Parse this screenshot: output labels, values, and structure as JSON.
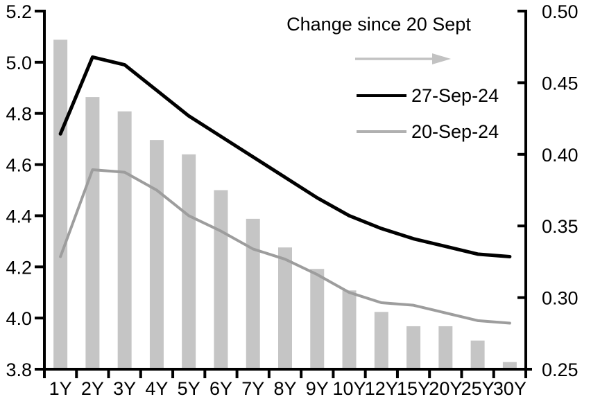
{
  "chart_data": {
    "type": "combo_bar_line",
    "title": "",
    "categories": [
      "1Y",
      "2Y",
      "3Y",
      "4Y",
      "5Y",
      "6Y",
      "7Y",
      "8Y",
      "9Y",
      "10Y",
      "12Y",
      "15Y",
      "20Y",
      "25Y",
      "30Y"
    ],
    "series": [
      {
        "name": "Change since 20 Sept",
        "type": "bar",
        "axis": "right",
        "color": "#c5c5c5",
        "values": [
          0.48,
          0.44,
          0.43,
          0.41,
          0.4,
          0.375,
          0.355,
          0.335,
          0.32,
          0.305,
          0.29,
          0.28,
          0.28,
          0.27,
          0.255
        ]
      },
      {
        "name": "27-Sep-24",
        "type": "line",
        "axis": "left",
        "color": "#000000",
        "values": [
          4.72,
          5.02,
          4.99,
          4.89,
          4.79,
          4.71,
          4.63,
          4.55,
          4.47,
          4.4,
          4.35,
          4.31,
          4.28,
          4.25,
          4.24
        ]
      },
      {
        "name": "20-Sep-24",
        "type": "line",
        "axis": "left",
        "color": "#9d9d9d",
        "values": [
          4.24,
          4.58,
          4.57,
          4.5,
          4.4,
          4.34,
          4.27,
          4.23,
          4.17,
          4.1,
          4.06,
          4.05,
          4.02,
          3.99,
          3.98
        ]
      }
    ],
    "left_axis": {
      "min": 3.8,
      "max": 5.2,
      "ticks": [
        5.2,
        5.0,
        4.8,
        4.6,
        4.4,
        4.2,
        4.0,
        3.8
      ],
      "tick_labels": [
        "5.2",
        "5.0",
        "4.8",
        "4.6",
        "4.4",
        "4.2",
        "4.0",
        "3.8"
      ]
    },
    "right_axis": {
      "min": 0.25,
      "max": 0.5,
      "ticks": [
        0.5,
        0.45,
        0.4,
        0.35,
        0.3,
        0.25
      ],
      "tick_labels": [
        "0.50",
        "0.45",
        "0.40",
        "0.35",
        "0.30",
        "0.25"
      ]
    },
    "grid": false,
    "legend_position": "top-right-inside",
    "legend": {
      "title": "Change since 20 Sept",
      "arrow_color": "#c2c2c2",
      "items": [
        {
          "label": "27-Sep-24",
          "color": "#000000"
        },
        {
          "label": "20-Sep-24",
          "color": "#b0b0b0"
        }
      ]
    }
  }
}
